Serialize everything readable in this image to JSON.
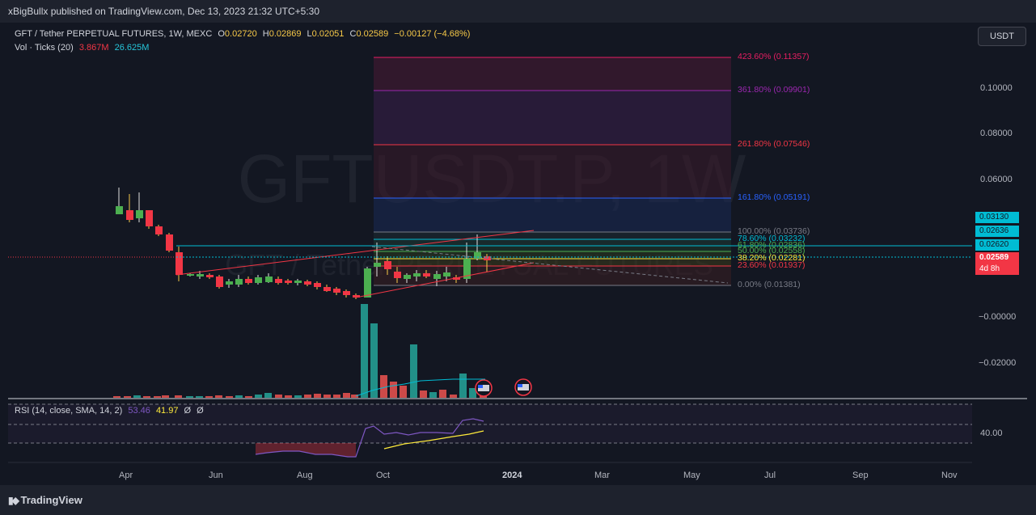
{
  "header": {
    "published_text": "xBigBullx published on TradingView.com, Dec 13, 2023 21:32 UTC+5:30"
  },
  "legend": {
    "symbol_line": "GFT / Tether PERPETUAL FUTURES, 1W, MEXC",
    "o_label": "O",
    "o_value": "0.02720",
    "h_label": "H",
    "h_value": "0.02869",
    "l_label": "L",
    "l_value": "0.02051",
    "c_label": "C",
    "c_value": "0.02589",
    "change": "−0.00127 (−4.68%)",
    "vol_label": "Vol · Ticks (20)",
    "vol_value1": "3.867M",
    "vol_value2": "26.625M",
    "rsi_label": "RSI (14, close, SMA, 14, 2)",
    "rsi_value1": "53.46",
    "rsi_value2": "41.97",
    "rsi_value3": "Ø",
    "rsi_value4": "Ø"
  },
  "currency_button": "USDT",
  "watermark": {
    "big": "GFTUSDT.P, 1W",
    "small": "GFT / Tether PERPETUAL FUTURES"
  },
  "price_axis": [
    "0.10000",
    "0.08000",
    "0.06000",
    "−0.00000",
    "−0.02000"
  ],
  "rsi_axis": "40.00",
  "price_tags": [
    {
      "text": "0.03130",
      "color": "#00bcd4",
      "fg": "#131722"
    },
    {
      "text": "0.02636",
      "color": "#00bcd4",
      "fg": "#131722"
    },
    {
      "text": "0.02620",
      "color": "#00bcd4",
      "fg": "#131722"
    },
    {
      "text": "0.02589",
      "color": "#f23645",
      "fg": "#ffffff"
    },
    {
      "text": "4d 8h",
      "color": "#f23645",
      "fg": "#ffffff"
    }
  ],
  "fib_levels": [
    {
      "label": "423.60% (0.11357)",
      "color": "#e91e63"
    },
    {
      "label": "361.80% (0.09901)",
      "color": "#9c27b0"
    },
    {
      "label": "261.80% (0.07546)",
      "color": "#f23645"
    },
    {
      "label": "161.80% (0.05191)",
      "color": "#2962ff"
    },
    {
      "label": "100.00% (0.03736)",
      "color": "#787b86"
    },
    {
      "label": "78.60% (0.03232)",
      "color": "#00bcd4"
    },
    {
      "label": "61.80% (0.02836)",
      "color": "#4caf50"
    },
    {
      "label": "50.00% (0.02558)",
      "color": "#4caf50"
    },
    {
      "label": "38.20% (0.02281)",
      "color": "#ffeb3b"
    },
    {
      "label": "23.60% (0.01937)",
      "color": "#f23645"
    },
    {
      "label": "0.00% (0.01381)",
      "color": "#787b86"
    }
  ],
  "time_axis": [
    "Apr",
    "Jun",
    "Aug",
    "Oct",
    "2024",
    "Mar",
    "May",
    "Jul",
    "Sep",
    "Nov"
  ],
  "footer": {
    "brand": "TradingView"
  },
  "colors": {
    "up": "#26a69a",
    "down": "#ef5350",
    "candle_up": "#4caf50",
    "candle_down": "#f23645"
  }
}
